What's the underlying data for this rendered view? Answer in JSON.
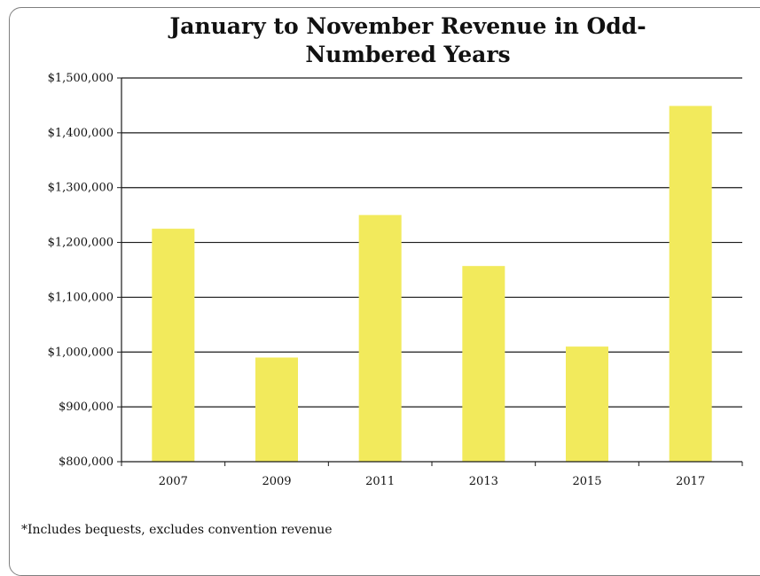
{
  "chart_data": {
    "type": "bar",
    "title": "January to November Revenue  in Odd-Numbered Years",
    "xlabel": "",
    "ylabel": "",
    "categories": [
      "2007",
      "2009",
      "2011",
      "2013",
      "2015",
      "2017"
    ],
    "values": [
      1225000,
      990000,
      1250000,
      1157000,
      1010000,
      1449000
    ],
    "ylim": [
      800000,
      1500000
    ],
    "yticks": [
      800000,
      900000,
      1000000,
      1100000,
      1200000,
      1300000,
      1400000,
      1500000
    ],
    "ytick_labels": [
      "$800,000",
      "$900,000",
      "$1,000,000",
      "$1,100,000",
      "$1,200,000",
      "$1,300,000",
      "$1,400,000",
      "$1,500,000"
    ],
    "grid": true,
    "legend": "none",
    "bar_color": "#f2ea5c"
  },
  "footnote": "*Includes bequests, excludes convention revenue"
}
